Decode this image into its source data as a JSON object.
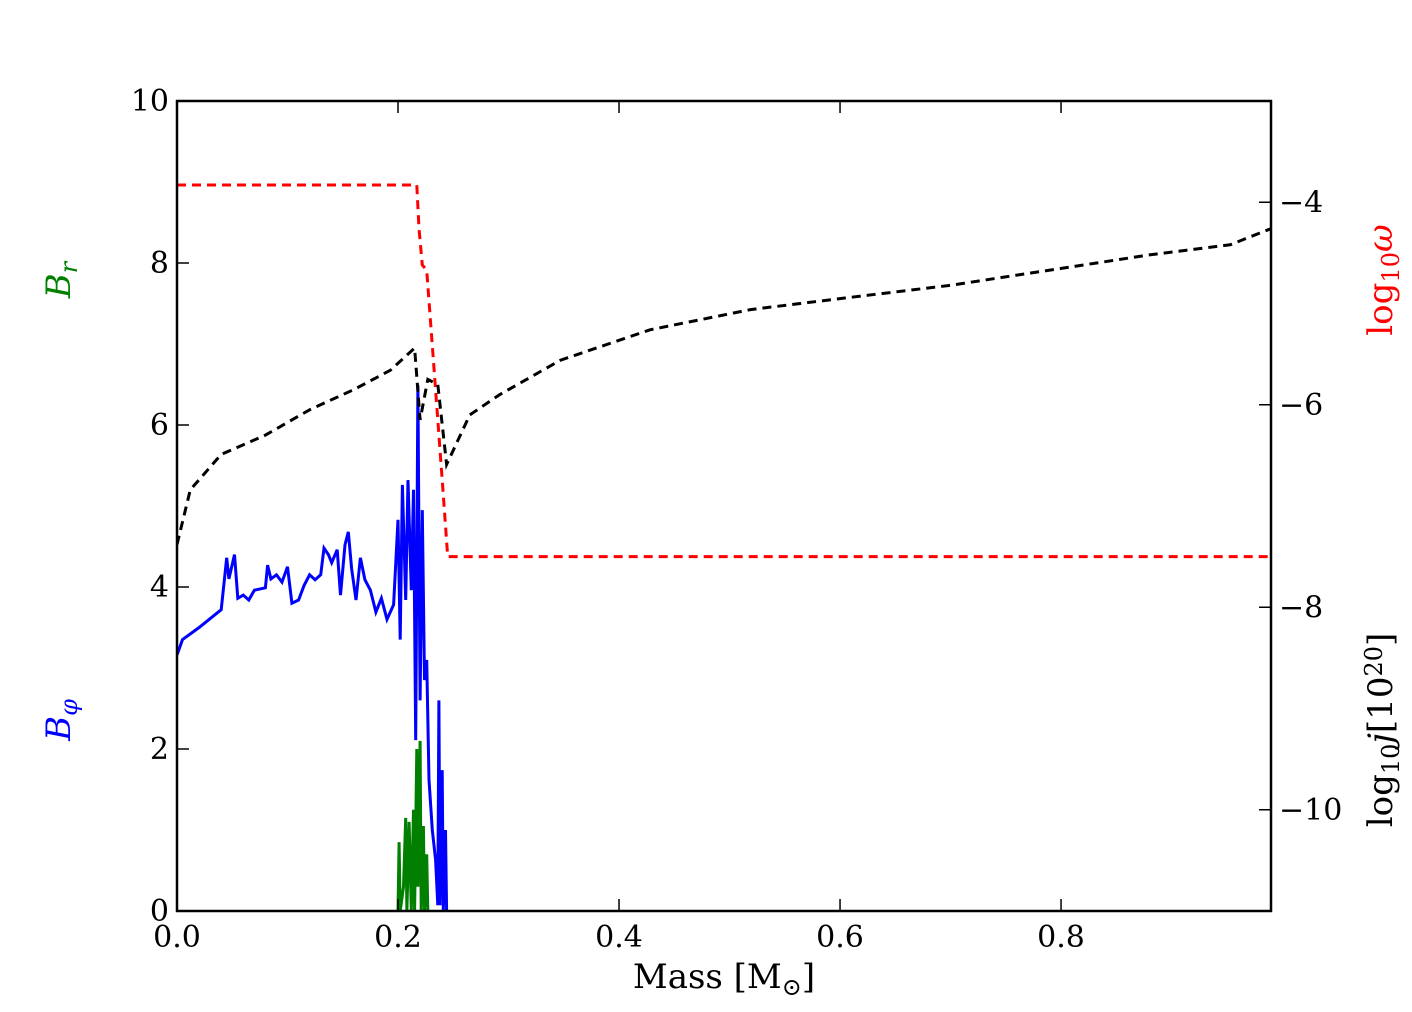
{
  "chart_data": {
    "type": "line",
    "xlabel": {
      "parts": [
        {
          "text": "Mass [M"
        },
        {
          "text": "⊙",
          "sub": true
        },
        {
          "text": "]"
        }
      ]
    },
    "ylabels": [
      {
        "color": "#007f00",
        "pos": "top",
        "parts": [
          {
            "text": "B",
            "italic": true
          },
          {
            "text": "r",
            "sub": true,
            "italic": true
          }
        ]
      },
      {
        "color": "#0000ff",
        "pos": "bottom",
        "parts": [
          {
            "text": "B",
            "italic": true
          },
          {
            "text": "φ",
            "sub": true,
            "italic": true
          }
        ]
      }
    ],
    "y2labels": [
      {
        "color": "#ff0000",
        "pos": "top",
        "parts": [
          {
            "text": "log"
          },
          {
            "text": "10",
            "sub": true
          },
          {
            "text": "ω",
            "italic": true
          }
        ]
      },
      {
        "color": "#000000",
        "pos": "bottom",
        "parts": [
          {
            "text": "log"
          },
          {
            "text": "10",
            "sub": true
          },
          {
            "text": "j",
            "italic": true
          },
          {
            "text": "[10"
          },
          {
            "text": "20",
            "sup": true
          },
          {
            "text": "]"
          }
        ]
      }
    ],
    "xlim": [
      0,
      0.99
    ],
    "xticks": [
      {
        "value": 0,
        "label": "0.0"
      },
      0.2,
      0.4,
      0.6,
      0.8
    ],
    "ylim": [
      0,
      10
    ],
    "yticks": [
      0,
      2,
      4,
      6,
      8,
      10
    ],
    "y2lim": [
      -11,
      -3
    ],
    "y2ticks": [
      {
        "value": -4,
        "label": "−4"
      },
      {
        "value": -6,
        "label": "−6"
      },
      {
        "value": -8,
        "label": "−8"
      },
      {
        "value": -10,
        "label": "−10"
      }
    ],
    "series": [
      {
        "color": "#0000ff",
        "dash": false,
        "axis": "y",
        "x": [
          0.0,
          0.005,
          0.02,
          0.04,
          0.045,
          0.047,
          0.052,
          0.055,
          0.06,
          0.065,
          0.07,
          0.08,
          0.082,
          0.085,
          0.09,
          0.095,
          0.1,
          0.104,
          0.11,
          0.115,
          0.12,
          0.125,
          0.13,
          0.133,
          0.137,
          0.14,
          0.145,
          0.148,
          0.152,
          0.155,
          0.158,
          0.162,
          0.166,
          0.17,
          0.175,
          0.18,
          0.185,
          0.19,
          0.196,
          0.2,
          0.202,
          0.204,
          0.207,
          0.209,
          0.212,
          0.214,
          0.216,
          0.218,
          0.22,
          0.222,
          0.224,
          0.226,
          0.228,
          0.231,
          0.234,
          0.236,
          0.237,
          0.238,
          0.24,
          0.241,
          0.243,
          0.244
        ],
        "values": [
          3.16,
          3.35,
          3.5,
          3.72,
          4.36,
          4.1,
          4.4,
          3.86,
          3.9,
          3.84,
          3.96,
          3.99,
          4.27,
          4.1,
          4.15,
          4.06,
          4.25,
          3.8,
          3.84,
          4.02,
          4.15,
          4.09,
          4.15,
          4.48,
          4.4,
          4.3,
          4.46,
          3.9,
          4.52,
          4.68,
          4.23,
          3.84,
          4.36,
          4.09,
          3.96,
          3.69,
          3.86,
          3.6,
          3.78,
          4.83,
          3.35,
          5.26,
          3.84,
          5.32,
          3.96,
          5.2,
          2.11,
          6.49,
          2.6,
          4.95,
          2.85,
          3.1,
          1.62,
          1.0,
          0.63,
          0.07,
          2.6,
          0.07,
          1.74,
          0,
          1.0,
          0
        ]
      },
      {
        "color": "#007f00",
        "dash": false,
        "axis": "y",
        "x": [
          0.2,
          0.201,
          0.202,
          0.205,
          0.207,
          0.208,
          0.21,
          0.212,
          0.214,
          0.215,
          0.217,
          0.218,
          0.22,
          0.221,
          0.223,
          0.224,
          0.226,
          0.227
        ],
        "values": [
          0,
          0.85,
          0,
          0.3,
          1.15,
          0,
          1.1,
          0,
          1.25,
          0,
          2.0,
          0.3,
          2.1,
          0,
          1.05,
          0,
          0.7,
          0
        ]
      },
      {
        "color": "#ff0000",
        "dash": true,
        "axis": "y2",
        "x": [
          0.0,
          0.217,
          0.219,
          0.222,
          0.226,
          0.232,
          0.24,
          0.245,
          0.99
        ],
        "values": [
          -3.83,
          -3.83,
          -4.26,
          -4.62,
          -4.67,
          -5.56,
          -6.74,
          -7.5,
          -7.5
        ]
      },
      {
        "color": "#000000",
        "dash": true,
        "axis": "y2",
        "x": [
          0.0,
          0.012,
          0.04,
          0.08,
          0.12,
          0.16,
          0.193,
          0.215,
          0.22,
          0.227,
          0.236,
          0.244,
          0.265,
          0.292,
          0.347,
          0.428,
          0.519,
          0.609,
          0.7,
          0.79,
          0.88,
          0.953,
          0.99
        ],
        "values": [
          -7.38,
          -6.84,
          -6.49,
          -6.3,
          -6.05,
          -5.85,
          -5.66,
          -5.44,
          -6.15,
          -5.75,
          -5.8,
          -6.59,
          -6.1,
          -5.9,
          -5.56,
          -5.26,
          -5.06,
          -4.94,
          -4.82,
          -4.67,
          -4.52,
          -4.42,
          -4.26
        ]
      }
    ]
  }
}
